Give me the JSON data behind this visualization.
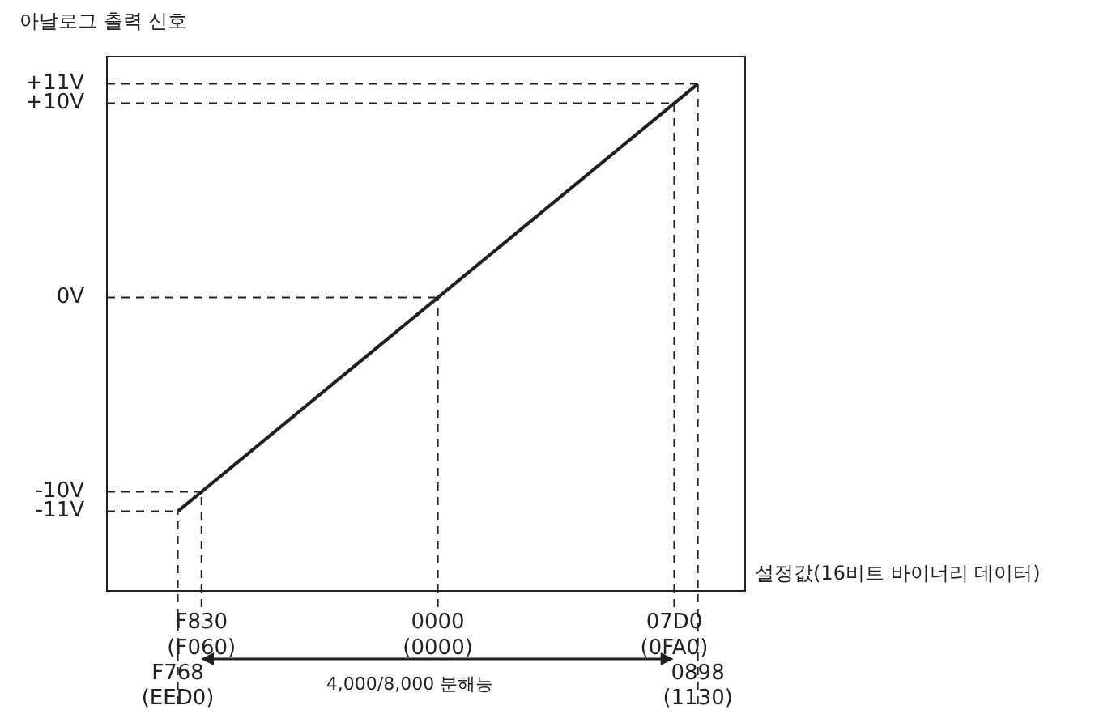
{
  "chart_data": {
    "type": "line",
    "ylabel": "아날로그 출력 신호",
    "xlabel": "설정값(16비트 바이너리 데이터)",
    "categories": [
      null,
      null,
      null,
      "F768\n(EED0)",
      "F830\n(F060)",
      null,
      null,
      null,
      null,
      null,
      null,
      null,
      null,
      null,
      "0000\n(0000)",
      null,
      null,
      null,
      null,
      null,
      null,
      null,
      null,
      null,
      "07D0\n(0FA0)",
      "0898\n(1130)",
      null,
      null
    ],
    "values": [
      null,
      null,
      null,
      -11,
      -10,
      -9,
      -8,
      -7,
      -6,
      -5,
      -4,
      -3,
      -2,
      -1,
      0,
      1,
      2,
      3,
      4,
      5,
      6,
      7,
      8,
      9,
      10,
      11,
      null,
      null
    ],
    "color": "#231f20",
    "line_style": "solid",
    "ylim": [
      -15.1,
      12.4
    ],
    "yticks": [
      {
        "value": -11,
        "label": "-11V"
      },
      {
        "value": -10,
        "label": "-10V"
      },
      {
        "value": 0,
        "label": "0V"
      },
      {
        "value": 10,
        "label": "+10V"
      },
      {
        "value": 11,
        "label": "+11V"
      }
    ],
    "ref_lines": [
      {
        "axis": "x",
        "value": "F768\n(EED0)",
        "color": "#231f20",
        "line_style": "dashed"
      },
      {
        "axis": "x",
        "value": "F830\n(F060)",
        "color": "#231f20",
        "line_style": "dashed"
      },
      {
        "axis": "x",
        "value": "0000\n(0000)",
        "color": "#231f20",
        "line_style": "dashed"
      },
      {
        "axis": "x",
        "value": "07D0\n(0FA0)",
        "color": "#231f20",
        "line_style": "dashed"
      },
      {
        "axis": "x",
        "value": "0898\n(1130)",
        "color": "#231f20",
        "line_style": "dashed"
      },
      {
        "axis": "y",
        "value": -11,
        "color": "#231f20",
        "line_style": "dashed"
      },
      {
        "axis": "y",
        "value": -10,
        "color": "#231f20",
        "line_style": "dashed"
      },
      {
        "axis": "y",
        "value": 0,
        "color": "#231f20",
        "line_style": "dashed"
      },
      {
        "axis": "y",
        "value": 10,
        "color": "#231f20",
        "line_style": "dashed"
      },
      {
        "axis": "y",
        "value": 11,
        "color": "#231f20",
        "line_style": "dashed"
      }
    ],
    "annotations": [
      "4,000/8,000 분해능"
    ]
  }
}
